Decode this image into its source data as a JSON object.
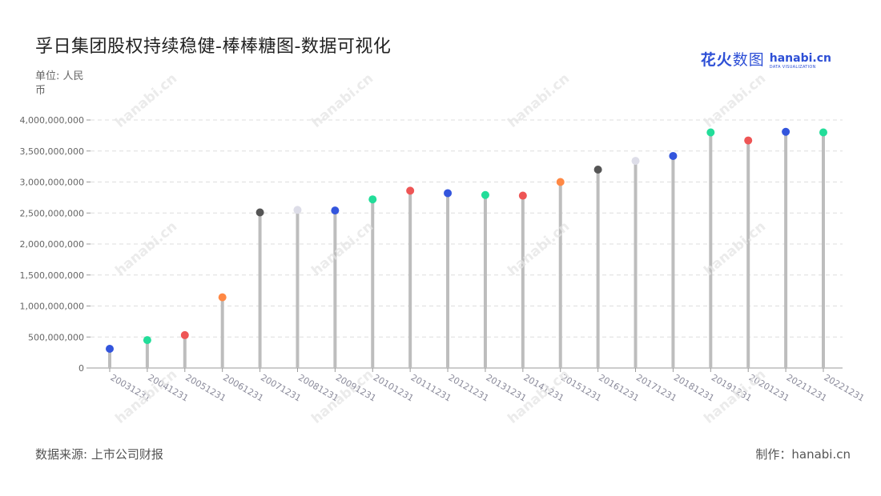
{
  "title": "孚日集团股权持续稳健-棒棒糖图-数据可视化",
  "unit_label": "单位: 人民币",
  "source": "数据来源: 上市公司财报",
  "credit": "制作：hanabi.cn",
  "logo": {
    "cn_a": "花火",
    "cn_b": "数图",
    "en": "hanabi.cn",
    "en_sub": "DATA VISUALIZATION"
  },
  "colors": {
    "stick": "#bdbdbd",
    "grid": "#dddddd",
    "axis": "#999999",
    "tick_text": "#666666",
    "x_tick_text": "#8a8a9a"
  },
  "chart_data": {
    "type": "lollipop",
    "title": "孚日集团股权持续稳健-棒棒糖图-数据可视化",
    "ylabel": "单位: 人民币",
    "ylim": [
      0,
      4000000000
    ],
    "y_ticks": [
      0,
      500000000,
      1000000000,
      1500000000,
      2000000000,
      2500000000,
      3000000000,
      3500000000,
      4000000000
    ],
    "y_tick_labels": [
      "0",
      "500,000,000",
      "1,000,000,000",
      "1,500,000,000",
      "2,000,000,000",
      "2,500,000,000",
      "3,000,000,000",
      "3,500,000,000",
      "4,000,000,000"
    ],
    "grid": true,
    "categories": [
      "20031231",
      "20041231",
      "20051231",
      "20061231",
      "20071231",
      "20081231",
      "20091231",
      "20101231",
      "20111231",
      "20121231",
      "20131231",
      "20141231",
      "20151231",
      "20161231",
      "20171231",
      "20181231",
      "20191231",
      "20201231",
      "20211231",
      "20221231"
    ],
    "values": [
      310000000,
      450000000,
      530000000,
      1140000000,
      2510000000,
      2550000000,
      2540000000,
      2720000000,
      2860000000,
      2820000000,
      2790000000,
      2780000000,
      3000000000,
      3200000000,
      3340000000,
      3420000000,
      3800000000,
      3670000000,
      3810000000,
      3800000000
    ],
    "dot_colors": [
      "#3355dd",
      "#22dd99",
      "#ee5555",
      "#ff8844",
      "#555555",
      "#dddde8",
      "#3355dd",
      "#22dd99",
      "#ee5555",
      "#3355dd",
      "#22dd99",
      "#ee5555",
      "#ff8844",
      "#555555",
      "#dddde8",
      "#3355dd",
      "#22dd99",
      "#ee5555",
      "#3355dd",
      "#22dd99"
    ]
  }
}
